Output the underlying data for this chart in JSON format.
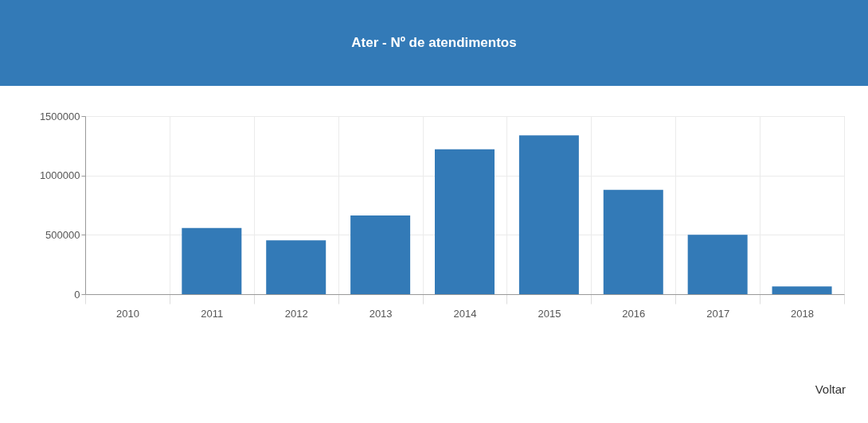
{
  "chart_data": {
    "type": "bar",
    "title": "Ater - Nº de atendimentos",
    "categories": [
      "2010",
      "2011",
      "2012",
      "2013",
      "2014",
      "2015",
      "2016",
      "2017",
      "2018"
    ],
    "values": [
      0,
      558000,
      453000,
      663000,
      1221000,
      1337000,
      879000,
      500000,
      65000
    ],
    "color": "#337ab7",
    "ylim": [
      0,
      1500000
    ],
    "yticks": [
      0,
      500000,
      1000000,
      1500000
    ],
    "grid": true,
    "annotations": [
      "Voltar"
    ]
  }
}
